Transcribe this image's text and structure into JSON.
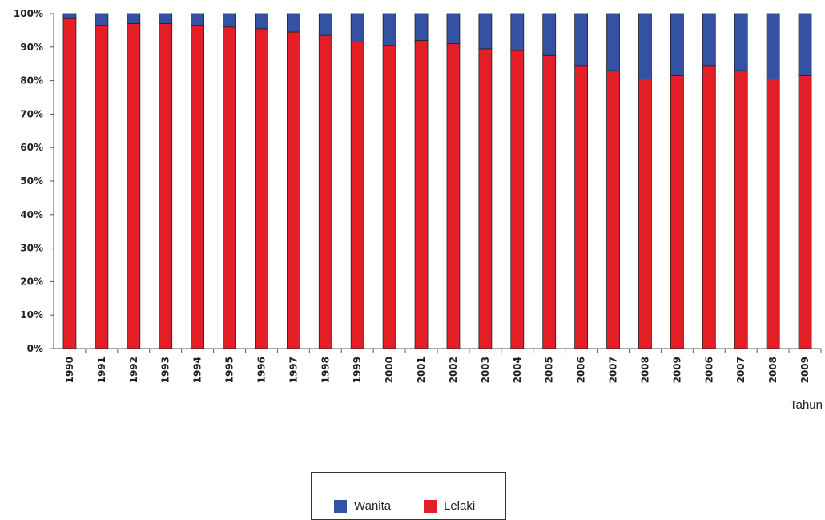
{
  "chart_data": {
    "type": "bar",
    "stacked": true,
    "percent": true,
    "categories": [
      "1990",
      "1991",
      "1992",
      "1993",
      "1994",
      "1995",
      "1996",
      "1997",
      "1998",
      "1999",
      "2000",
      "2001",
      "2002",
      "2003",
      "2004",
      "2005",
      "2006",
      "2007",
      "2008",
      "2009",
      "2006",
      "2007",
      "2008",
      "2009"
    ],
    "series": [
      {
        "name": "Lelaki",
        "color": "#e41e26",
        "values": [
          98.5,
          96.5,
          97,
          97,
          96.5,
          96,
          95.5,
          94.5,
          93.5,
          91.5,
          90.5,
          92,
          91,
          89.5,
          89,
          87.5,
          84.5,
          83,
          80.5,
          81.5,
          84.5,
          83,
          80.5,
          81.5
        ]
      },
      {
        "name": "Wanita",
        "color": "#3452a4",
        "values": [
          1.5,
          3.5,
          3,
          3,
          3.5,
          4,
          4.5,
          5.5,
          6.5,
          8.5,
          9.5,
          8,
          9,
          10.5,
          11,
          12.5,
          15.5,
          17,
          19.5,
          18.5,
          15.5,
          17,
          19.5,
          18.5
        ]
      }
    ],
    "ytick_labels": [
      "0%",
      "10%",
      "20%",
      "30%",
      "40%",
      "50%",
      "60%",
      "70%",
      "80%",
      "90%",
      "100%"
    ],
    "ylim": [
      0,
      100
    ],
    "xlabel": "Tahun",
    "ylabel": "",
    "legend": {
      "position": "bottom",
      "items": [
        "Wanita",
        "Lelaki"
      ]
    }
  }
}
